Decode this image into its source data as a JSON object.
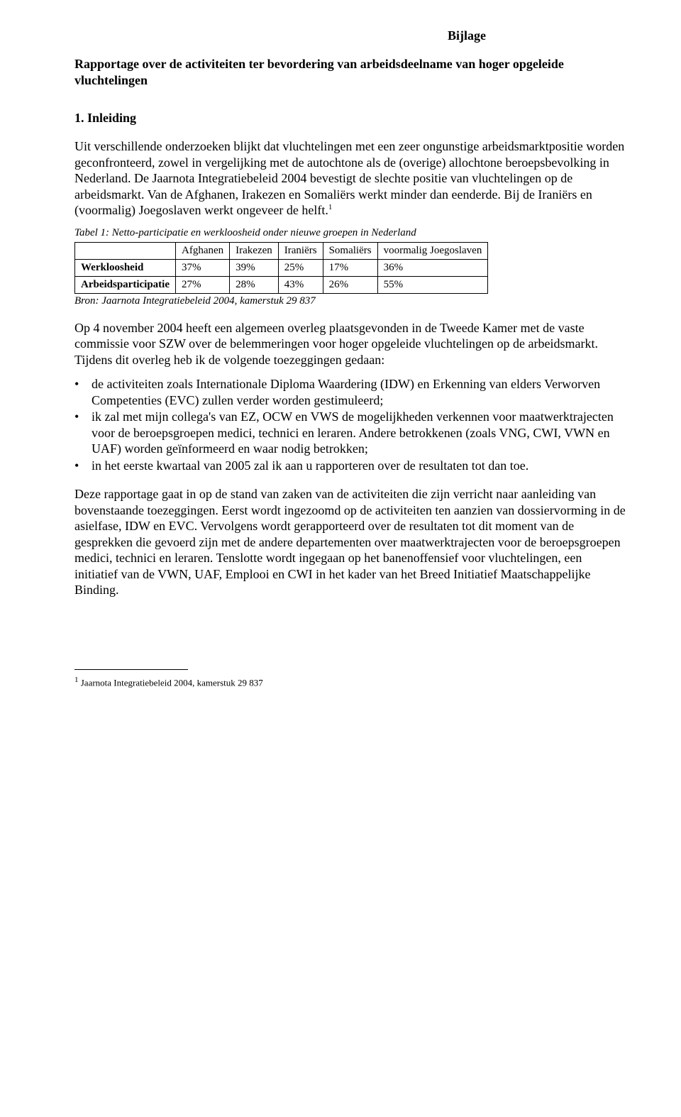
{
  "header": {
    "bijlage": "Bijlage"
  },
  "title": "Rapportage over de activiteiten ter bevordering van arbeidsdeelname van hoger opgeleide vluchtelingen",
  "section1": {
    "heading": "1. Inleiding",
    "para1": "Uit verschillende onderzoeken blijkt dat vluchtelingen met een zeer ongunstige arbeidsmarktpositie worden geconfronteerd, zowel in vergelijking met de autochtone als de (overige) allochtone beroepsbevolking in Nederland. De Jaarnota Integratiebeleid 2004 bevestigt de slechte positie van vluchtelingen op de arbeidsmarkt. Van de Afghanen, Irakezen en Somaliërs werkt minder dan eenderde. Bij de Iraniërs en (voormalig) Joegoslaven werkt ongeveer de helft."
  },
  "table1": {
    "caption": "Tabel 1: Netto-participatie en werkloosheid onder nieuwe groepen in Nederland",
    "columns": [
      "",
      "Afghanen",
      "Irakezen",
      "Iraniërs",
      "Somaliërs",
      "voormalig Joegoslaven"
    ],
    "rows": [
      [
        "Werkloosheid",
        "37%",
        "39%",
        "25%",
        "17%",
        "36%"
      ],
      [
        "Arbeidsparticipatie",
        "27%",
        "28%",
        "43%",
        "26%",
        "55%"
      ]
    ],
    "source": "Bron: Jaarnota Integratiebeleid 2004, kamerstuk 29 837"
  },
  "para2": "Op 4 november 2004 heeft een algemeen overleg plaatsgevonden in de Tweede Kamer met de vaste commissie voor SZW over de belemmeringen voor hoger opgeleide vluchtelingen op de arbeidsmarkt. Tijdens dit overleg heb ik de volgende toezeggingen gedaan:",
  "bullets": [
    "de activiteiten zoals Internationale Diploma Waardering (IDW) en Erkenning van elders Verworven Competenties (EVC) zullen verder worden gestimuleerd;",
    "ik zal met mijn collega's van EZ, OCW en VWS de mogelijkheden verkennen voor maatwerktrajecten voor de beroepsgroepen medici, technici en leraren. Andere betrokkenen (zoals VNG, CWI, VWN en UAF) worden geïnformeerd en waar nodig betrokken;",
    "in het eerste kwartaal van 2005 zal ik aan u rapporteren over de resultaten tot dan toe."
  ],
  "para3": "Deze rapportage gaat in op de stand van zaken van de activiteiten die zijn verricht naar aanleiding van bovenstaande toezeggingen. Eerst wordt ingezoomd op de activiteiten ten aanzien van dossiervorming in de asielfase, IDW en EVC. Vervolgens wordt gerapporteerd over de resultaten tot dit moment van de gesprekken die gevoerd zijn met de andere departementen over maatwerktrajecten voor de beroepsgroepen medici, technici en leraren. Tenslotte wordt ingegaan op het banenoffensief voor vluchtelingen, een initiatief van de VWN, UAF, Emplooi en CWI in het kader van het Breed Initiatief Maatschappelijke Binding.",
  "footnote": {
    "marker": "1",
    "text": " Jaarnota Integratiebeleid 2004, kamerstuk 29 837"
  }
}
